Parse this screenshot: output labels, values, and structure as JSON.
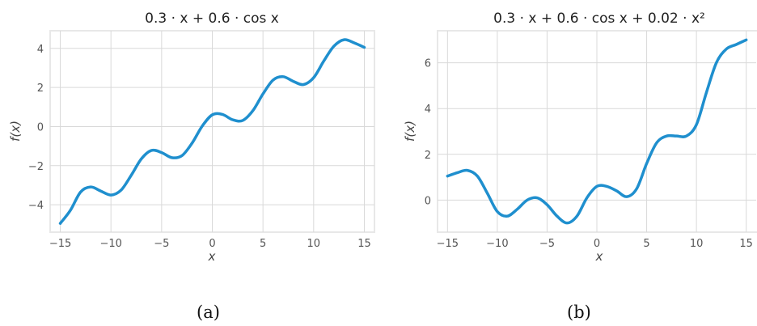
{
  "panels": [
    {
      "label": "(a)",
      "title": "0.3 · x + 0.6 · cos x",
      "chart_data": {
        "type": "line",
        "title": "0.3 · x + 0.6 · cos x",
        "xlabel": "x",
        "ylabel": "f(x)",
        "xlim": [
          -16,
          16
        ],
        "ylim": [
          -5.4,
          4.9
        ],
        "xticks": [
          -15,
          -10,
          -5,
          0,
          5,
          10,
          15
        ],
        "yticks": [
          -4,
          -2,
          0,
          2,
          4
        ],
        "xtick_labels": [
          "−15",
          "−10",
          "−5",
          "0",
          "5",
          "10",
          "15"
        ],
        "ytick_labels": [
          "−4",
          "−2",
          "0",
          "2",
          "4"
        ],
        "grid": true,
        "color": "#1f8fce",
        "series": [
          {
            "x": [
              -15,
              -14,
              -13,
              -12,
              -11,
              -10,
              -9,
              -8,
              -7,
              -6,
              -5,
              -4,
              -3,
              -2,
              -1,
              0,
              1,
              2,
              3,
              4,
              5,
              6,
              7,
              8,
              9,
              10,
              11,
              12,
              13,
              14,
              15
            ],
            "y": [
              -4.95,
              -4.28,
              -3.35,
              -3.09,
              -3.3,
              -3.5,
              -3.25,
              -2.49,
              -1.65,
              -1.22,
              -1.33,
              -1.59,
              -1.49,
              -0.85,
              0.02,
              0.6,
              0.62,
              0.35,
              0.31,
              0.81,
              1.67,
              2.38,
              2.55,
              2.31,
              2.15,
              2.5,
              3.35,
              4.11,
              4.44,
              4.28,
              4.05
            ]
          }
        ]
      }
    },
    {
      "label": "(b)",
      "title": "0.3 · x + 0.6 · cos x + 0.02 · x²",
      "chart_data": {
        "type": "line",
        "title": "0.3 · x + 0.6 · cos x + 0.02 · x²",
        "xlabel": "x",
        "ylabel": "f(x)",
        "xlim": [
          -16,
          16
        ],
        "ylim": [
          -1.4,
          7.4
        ],
        "xticks": [
          -15,
          -10,
          -5,
          0,
          5,
          10,
          15
        ],
        "yticks": [
          0,
          2,
          4,
          6
        ],
        "xtick_labels": [
          "−15",
          "−10",
          "−5",
          "0",
          "5",
          "10",
          "15"
        ],
        "ytick_labels": [
          "0",
          "2",
          "4",
          "6"
        ],
        "grid": true,
        "color": "#1f8fce",
        "series": [
          {
            "x": [
              -15,
              -14,
              -13,
              -12,
              -11,
              -10,
              -9,
              -8,
              -7,
              -6,
              -5,
              -4,
              -3,
              -2,
              -1,
              0,
              1,
              2,
              3,
              4,
              5,
              6,
              7,
              8,
              9,
              10,
              11,
              12,
              13,
              14,
              15
            ],
            "y": [
              1.05,
              1.2,
              1.3,
              1.05,
              0.3,
              -0.5,
              -0.7,
              -0.4,
              0.0,
              0.1,
              -0.2,
              -0.7,
              -1.0,
              -0.7,
              0.1,
              0.6,
              0.6,
              0.4,
              0.15,
              0.5,
              1.6,
              2.5,
              2.8,
              2.8,
              2.8,
              3.3,
              4.7,
              6.0,
              6.6,
              6.8,
              7.0
            ]
          }
        ]
      }
    }
  ]
}
